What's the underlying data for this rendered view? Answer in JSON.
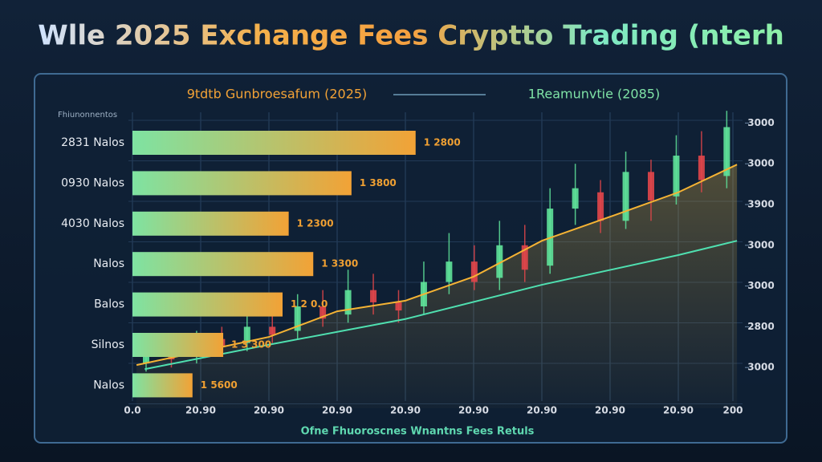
{
  "chart_data": [
    {
      "type": "bar",
      "title": "Wlle 2025 Exchange Fees Cryptto Trading (nterh",
      "legend_left": "9tdtb Gunbroesafum (2025)",
      "legend_right": "1Reamunvtie (2085)",
      "axis_note": "Fhiunonnentos",
      "caption": "Ofne Fhuoroscnes Wnantns Fees Retuls",
      "categories": [
        "2831 Nalos",
        "0930 Nalos",
        "4030 Nalos",
        "Nalos",
        "Balos",
        "Silnos",
        "Nalos"
      ],
      "values": [
        4.15,
        3.21,
        2.29,
        2.65,
        2.2,
        1.33,
        0.88
      ],
      "bar_annotations": [
        "1 2800",
        "1 3800",
        "1 2300",
        "1 3300",
        "1 2 0.0",
        "1 3 300",
        "1 5600"
      ],
      "color_start": "#7ee3a2",
      "color_end": "#f2a236",
      "xlim": [
        0,
        8.8
      ],
      "xticks": [
        {
          "value": 0,
          "label": "0.0"
        },
        {
          "value": 1,
          "label": "20.90"
        },
        {
          "value": 2,
          "label": "20.90"
        },
        {
          "value": 3,
          "label": "20.90"
        },
        {
          "value": 4,
          "label": "20.90"
        },
        {
          "value": 5,
          "label": "20.90"
        },
        {
          "value": 6,
          "label": "20.90"
        },
        {
          "value": 7,
          "label": "20.90"
        },
        {
          "value": 8,
          "label": "20.90"
        },
        {
          "value": 8.8,
          "label": "200"
        }
      ],
      "grid": true
    },
    {
      "type": "candlestick",
      "x": [
        0.2,
        0.57,
        0.94,
        1.31,
        1.68,
        2.05,
        2.42,
        2.79,
        3.16,
        3.53,
        3.9,
        4.27,
        4.64,
        5.01,
        5.38,
        5.75,
        6.12,
        6.49,
        6.86,
        7.23,
        7.6,
        7.97,
        8.34,
        8.71
      ],
      "open": [
        1.1,
        1.4,
        1.3,
        1.7,
        1.6,
        2.0,
        1.9,
        2.5,
        2.3,
        2.9,
        2.6,
        2.5,
        3.1,
        3.6,
        3.2,
        4.0,
        3.5,
        4.9,
        5.3,
        4.6,
        5.8,
        5.2,
        6.2,
        5.7
      ],
      "close": [
        1.4,
        1.2,
        1.7,
        1.5,
        2.0,
        1.8,
        2.5,
        2.2,
        2.9,
        2.6,
        2.4,
        3.1,
        3.6,
        3.1,
        4.0,
        3.4,
        4.9,
        5.4,
        4.6,
        5.8,
        5.1,
        6.2,
        5.6,
        6.9
      ],
      "high": [
        1.6,
        1.7,
        1.9,
        2.0,
        2.3,
        2.4,
        2.8,
        2.9,
        3.4,
        3.3,
        2.9,
        3.6,
        4.3,
        4.0,
        4.6,
        4.5,
        5.4,
        6.0,
        5.6,
        6.3,
        6.1,
        6.7,
        6.8,
        7.3
      ],
      "low": [
        0.9,
        1.0,
        1.1,
        1.3,
        1.4,
        1.6,
        1.7,
        2.0,
        2.1,
        2.3,
        2.1,
        2.3,
        2.8,
        2.9,
        2.9,
        3.1,
        3.3,
        4.5,
        4.3,
        4.4,
        4.6,
        5.0,
        5.3,
        5.4
      ],
      "up_color": "#5fe39a",
      "down_color": "#e2464a",
      "lines": [
        {
          "color": "#f5b334",
          "x": [
            0.06,
            2,
            3,
            4,
            5,
            6,
            7,
            8,
            8.86
          ],
          "values": [
            1.06,
            1.75,
            2.38,
            2.64,
            3.23,
            4.11,
            4.7,
            5.3,
            5.98
          ]
        },
        {
          "color": "#4fe0b0",
          "x": [
            0.18,
            2,
            4,
            6,
            8,
            8.86
          ],
          "values": [
            0.96,
            1.56,
            2.19,
            3.03,
            3.76,
            4.11
          ]
        }
      ],
      "y2lim": [
        0,
        7.5
      ],
      "y2ticks": [
        {
          "value": 7,
          "label": "3000"
        },
        {
          "value": 6,
          "label": "3000"
        },
        {
          "value": 5,
          "label": "3900"
        },
        {
          "value": 4,
          "label": "3000"
        },
        {
          "value": 3,
          "label": "3000"
        },
        {
          "value": 2,
          "label": "2800"
        },
        {
          "value": 1,
          "label": "3000"
        }
      ]
    }
  ]
}
